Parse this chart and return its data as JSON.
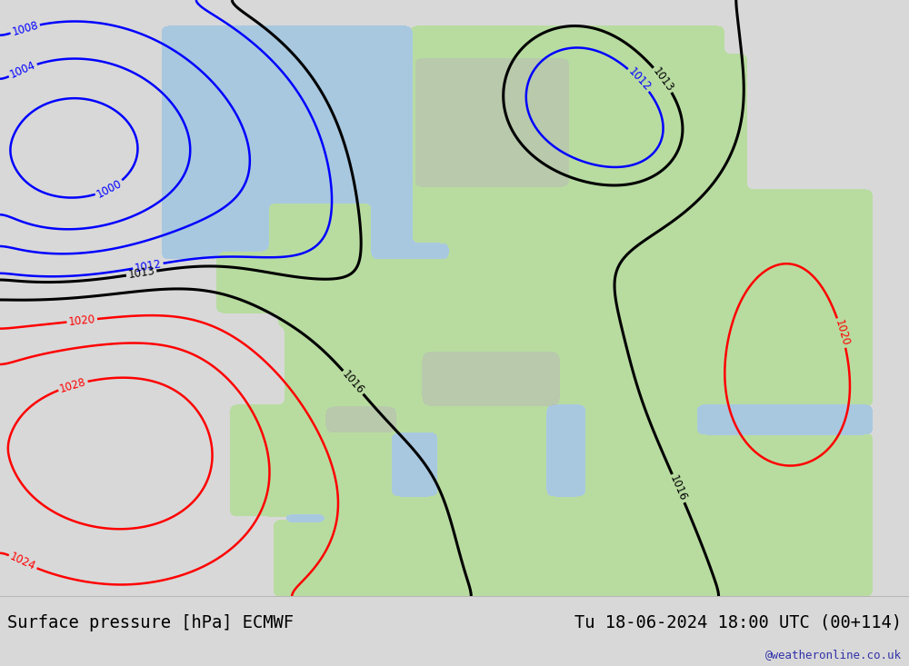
{
  "title_left": "Surface pressure [hPa] ECMWF",
  "title_right": "Tu 18-06-2024 18:00 UTC (00+114)",
  "watermark": "@weatheronline.co.uk",
  "ocean_color": "#c8d8e8",
  "land_color": "#b8dca0",
  "gray_bg": "#d8d8d8",
  "bottom_bg": "#d8d8d8",
  "text_color": "#000000"
}
